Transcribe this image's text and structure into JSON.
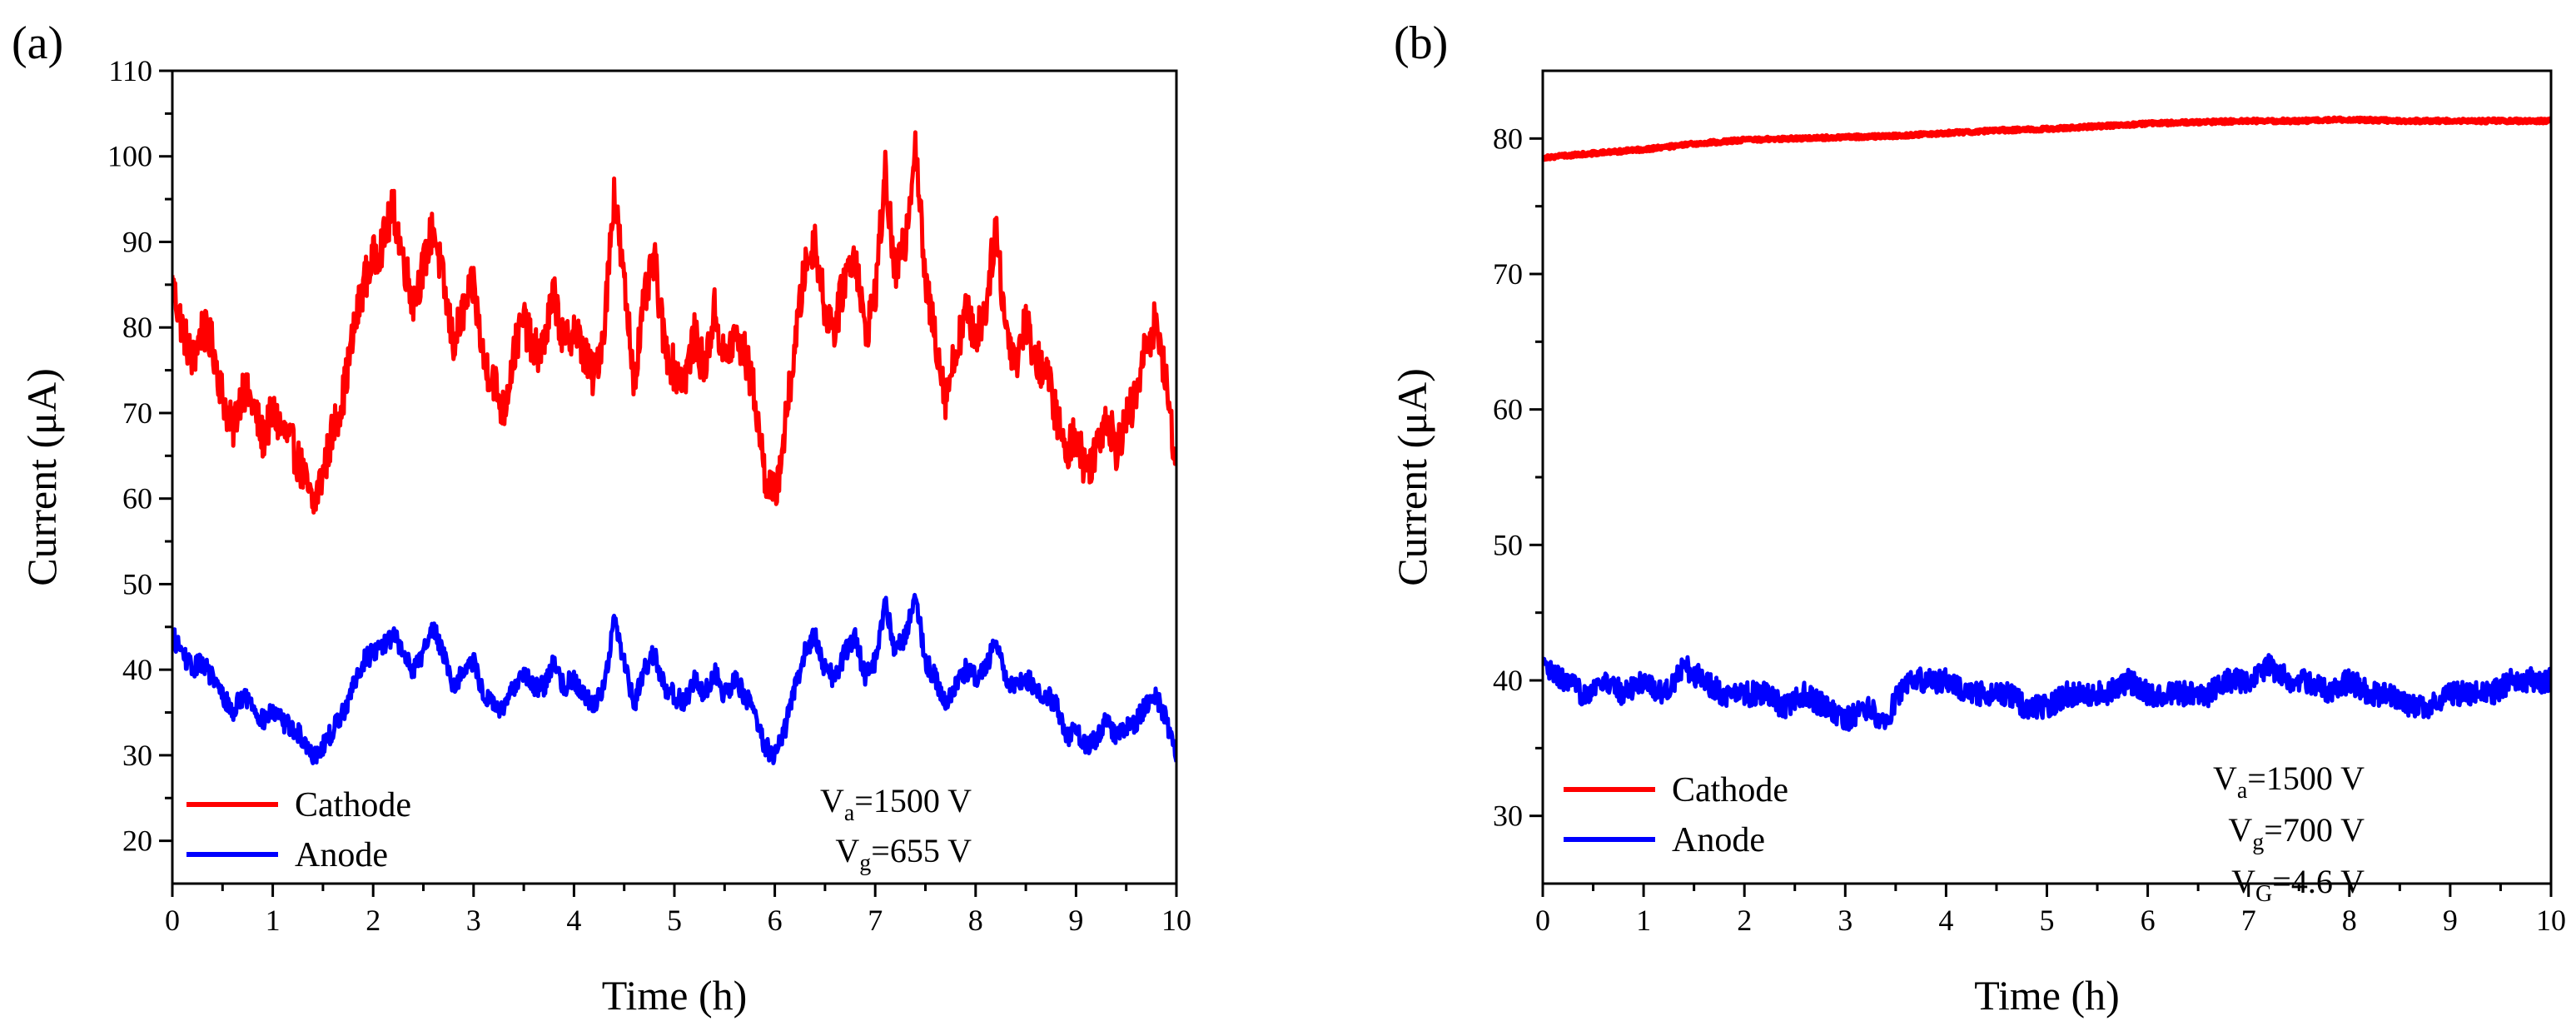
{
  "chart_data": [
    {
      "type": "line",
      "panel_label": "(a)",
      "xlabel": "Time (h)",
      "ylabel": "Current (μA)",
      "xlim": [
        0,
        10
      ],
      "ylim": [
        15,
        110
      ],
      "xticks": [
        0,
        1,
        2,
        3,
        4,
        5,
        6,
        7,
        8,
        9,
        10
      ],
      "yticks": [
        20,
        30,
        40,
        50,
        60,
        70,
        80,
        90,
        100,
        110
      ],
      "legend_location": "bottom-left",
      "series": [
        {
          "name": "Cathode",
          "color": "#ff0000",
          "x": [
            0,
            0.1,
            0.2,
            0.3,
            0.4,
            0.5,
            0.6,
            0.7,
            0.8,
            0.9,
            1.0,
            1.1,
            1.2,
            1.3,
            1.4,
            1.5,
            1.6,
            1.7,
            1.8,
            1.9,
            2.0,
            2.1,
            2.2,
            2.3,
            2.4,
            2.5,
            2.6,
            2.7,
            2.8,
            2.9,
            3.0,
            3.1,
            3.2,
            3.3,
            3.4,
            3.5,
            3.6,
            3.7,
            3.8,
            3.9,
            4.0,
            4.1,
            4.2,
            4.3,
            4.4,
            4.5,
            4.6,
            4.7,
            4.8,
            4.9,
            5.0,
            5.1,
            5.2,
            5.3,
            5.4,
            5.5,
            5.6,
            5.7,
            5.8,
            5.9,
            6.0,
            6.1,
            6.2,
            6.3,
            6.4,
            6.5,
            6.6,
            6.7,
            6.8,
            6.9,
            7.0,
            7.1,
            7.2,
            7.3,
            7.4,
            7.5,
            7.6,
            7.7,
            7.8,
            7.9,
            8.0,
            8.1,
            8.2,
            8.3,
            8.4,
            8.5,
            8.6,
            8.7,
            8.8,
            8.9,
            9.0,
            9.1,
            9.2,
            9.3,
            9.4,
            9.5,
            9.6,
            9.7,
            9.8,
            9.9,
            10.0
          ],
          "y": [
            85,
            80,
            76,
            80,
            78,
            72,
            68,
            73,
            71,
            67,
            70,
            68,
            66,
            63,
            59,
            63,
            68,
            72,
            79,
            85,
            88,
            90,
            94,
            88,
            83,
            87,
            92,
            85,
            78,
            82,
            85,
            76,
            74,
            70,
            77,
            81,
            77,
            78,
            84,
            78,
            80,
            77,
            74,
            80,
            96,
            85,
            74,
            83,
            88,
            78,
            75,
            74,
            79,
            75,
            82,
            76,
            79,
            77,
            72,
            63,
            60,
            68,
            78,
            87,
            90,
            82,
            80,
            86,
            89,
            79,
            84,
            98,
            86,
            90,
            102,
            85,
            79,
            72,
            77,
            82,
            79,
            82,
            92,
            80,
            76,
            81,
            76,
            75,
            70,
            65,
            68,
            63,
            66,
            70,
            66,
            69,
            72,
            78,
            81,
            73,
            64
          ]
        },
        {
          "name": "Anode",
          "color": "#0000ff",
          "x": [
            0,
            0.1,
            0.2,
            0.3,
            0.4,
            0.5,
            0.6,
            0.7,
            0.8,
            0.9,
            1.0,
            1.1,
            1.2,
            1.3,
            1.4,
            1.5,
            1.6,
            1.7,
            1.8,
            1.9,
            2.0,
            2.1,
            2.2,
            2.3,
            2.4,
            2.5,
            2.6,
            2.7,
            2.8,
            2.9,
            3.0,
            3.1,
            3.2,
            3.3,
            3.4,
            3.5,
            3.6,
            3.7,
            3.8,
            3.9,
            4.0,
            4.1,
            4.2,
            4.3,
            4.4,
            4.5,
            4.6,
            4.7,
            4.8,
            4.9,
            5.0,
            5.1,
            5.2,
            5.3,
            5.4,
            5.5,
            5.6,
            5.7,
            5.8,
            5.9,
            6.0,
            6.1,
            6.2,
            6.3,
            6.4,
            6.5,
            6.6,
            6.7,
            6.8,
            6.9,
            7.0,
            7.1,
            7.2,
            7.3,
            7.4,
            7.5,
            7.6,
            7.7,
            7.8,
            7.9,
            8.0,
            8.1,
            8.2,
            8.3,
            8.4,
            8.5,
            8.6,
            8.7,
            8.8,
            8.9,
            9.0,
            9.1,
            9.2,
            9.3,
            9.4,
            9.5,
            9.6,
            9.7,
            9.8,
            9.9,
            10.0
          ],
          "y": [
            44,
            42,
            40,
            41,
            39,
            37,
            35,
            37,
            36,
            34,
            35,
            34,
            33,
            32,
            30,
            31,
            33,
            35,
            38,
            41,
            42,
            43,
            44,
            42,
            40,
            42,
            45,
            42,
            38,
            40,
            41,
            37,
            36,
            35,
            38,
            40,
            38,
            38,
            41,
            38,
            39,
            37,
            36,
            38,
            46,
            41,
            36,
            40,
            42,
            38,
            37,
            36,
            39,
            37,
            40,
            37,
            39,
            37,
            35,
            31,
            30,
            33,
            38,
            42,
            44,
            40,
            39,
            42,
            44,
            39,
            41,
            48,
            42,
            44,
            49,
            41,
            39,
            36,
            38,
            40,
            39,
            40,
            44,
            39,
            38,
            39,
            38,
            37,
            36,
            32,
            33,
            31,
            32,
            34,
            32,
            33,
            34,
            36,
            37,
            34,
            30
          ]
        }
      ],
      "annotations": [
        {
          "base": "V",
          "sub": "a",
          "rest": "=1500 V"
        },
        {
          "base": "V",
          "sub": "g",
          "rest": "=655 V"
        }
      ]
    },
    {
      "type": "line",
      "panel_label": "(b)",
      "xlabel": "Time (h)",
      "ylabel": "Current (μA)",
      "xlim": [
        0,
        10
      ],
      "ylim": [
        25,
        85
      ],
      "xticks": [
        0,
        1,
        2,
        3,
        4,
        5,
        6,
        7,
        8,
        9,
        10
      ],
      "yticks": [
        30,
        40,
        50,
        60,
        70,
        80
      ],
      "legend_location": "bottom-left",
      "series": [
        {
          "name": "Cathode",
          "color": "#ff0000",
          "x": [
            0,
            0.5,
            1,
            1.5,
            2,
            2.5,
            3,
            3.5,
            4,
            4.5,
            5,
            5.5,
            6,
            6.5,
            7,
            7.5,
            8,
            8.5,
            9,
            9.5,
            10
          ],
          "y": [
            78.6,
            78.9,
            79.2,
            79.6,
            79.9,
            80.0,
            80.1,
            80.2,
            80.4,
            80.6,
            80.7,
            80.9,
            81.1,
            81.2,
            81.3,
            81.3,
            81.4,
            81.3,
            81.3,
            81.3,
            81.3
          ]
        },
        {
          "name": "Anode",
          "color": "#0000ff",
          "x": [
            0,
            0.2,
            0.4,
            0.6,
            0.8,
            1.0,
            1.2,
            1.4,
            1.6,
            1.8,
            2.0,
            2.2,
            2.4,
            2.6,
            2.8,
            3.0,
            3.2,
            3.4,
            3.6,
            3.8,
            4.0,
            4.2,
            4.4,
            4.6,
            4.8,
            5.0,
            5.2,
            5.4,
            5.6,
            5.8,
            6.0,
            6.2,
            6.4,
            6.6,
            6.8,
            7.0,
            7.2,
            7.4,
            7.6,
            7.8,
            8.0,
            8.2,
            8.4,
            8.6,
            8.8,
            9.0,
            9.2,
            9.4,
            9.6,
            9.8,
            10.0
          ],
          "y": [
            41,
            40,
            39,
            40,
            39,
            40,
            39,
            41,
            40,
            39,
            39,
            39,
            38,
            39,
            38,
            37,
            38,
            37,
            40,
            40,
            40,
            39,
            39,
            39,
            38,
            38,
            39,
            39,
            39,
            40,
            39,
            39,
            39,
            39,
            40,
            40,
            41,
            40,
            40,
            39,
            40,
            39,
            39,
            38,
            38,
            39,
            39,
            39,
            40,
            40,
            40
          ]
        }
      ],
      "annotations": [
        {
          "base": "V",
          "sub": "a",
          "rest": "=1500 V"
        },
        {
          "base": "V",
          "sub": "g",
          "rest": "=700 V"
        },
        {
          "base": "V",
          "sub": "G",
          "rest": "=4.6 V"
        }
      ]
    }
  ]
}
